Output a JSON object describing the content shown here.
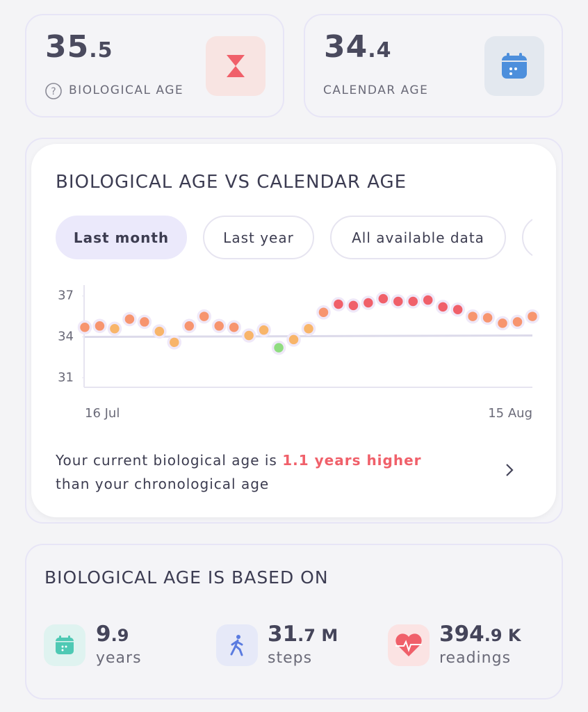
{
  "cards": [
    {
      "value_int": "35",
      "value_frac": ".5",
      "label": "BIOLOGICAL AGE"
    },
    {
      "value_int": "34",
      "value_frac": ".4",
      "label": "CALENDAR AGE"
    }
  ],
  "filters": [
    "Last month",
    "Last year",
    "All available data"
  ],
  "chart_data": {
    "type": "scatter",
    "title": "BIOLOGICAL AGE VS CALENDAR AGE",
    "categories": [
      "16 Jul",
      null,
      null,
      null,
      null,
      null,
      null,
      null,
      null,
      null,
      null,
      null,
      null,
      null,
      null,
      null,
      null,
      null,
      null,
      null,
      null,
      null,
      null,
      null,
      null,
      null,
      null,
      null,
      null,
      null,
      "15 Aug"
    ],
    "values": [
      34.7,
      34.8,
      34.6,
      35.3,
      35.1,
      34.4,
      33.6,
      34.8,
      35.5,
      34.8,
      34.7,
      34.1,
      34.5,
      33.2,
      33.8,
      34.6,
      35.8,
      36.4,
      36.3,
      36.5,
      36.8,
      36.6,
      36.6,
      36.7,
      36.2,
      36.0,
      35.5,
      35.4,
      35.0,
      35.1,
      35.5
    ],
    "colors": [
      "#f7956f",
      "#f7956f",
      "#f8b56a",
      "#f7956f",
      "#f7956f",
      "#f8b56a",
      "#f8b56a",
      "#f7956f",
      "#f7956f",
      "#f7956f",
      "#f7956f",
      "#f8b56a",
      "#f8b56a",
      "#8fdc80",
      "#f8b56a",
      "#f8b56a",
      "#f7956f",
      "#f0606a",
      "#f0606a",
      "#f0606a",
      "#f0606a",
      "#f0606a",
      "#f0606a",
      "#f0606a",
      "#f0606a",
      "#f0606a",
      "#f7956f",
      "#f7956f",
      "#f7956f",
      "#f7956f",
      "#f7956f"
    ],
    "baseline": [
      34.0,
      34.1
    ],
    "baseline_color": "#dcdaea",
    "ylim": [
      30.3,
      37.8
    ],
    "yticks": [
      31,
      34,
      37
    ]
  },
  "summary": {
    "text_before": "Your current biological age is",
    "highlight": "1.1 years higher",
    "text_after": "than your chronological age"
  },
  "based_on": {
    "title": "BIOLOGICAL AGE IS BASED ON",
    "items": [
      {
        "value_int": "9",
        "value_frac": ".9",
        "unit": "years"
      },
      {
        "value_int": "31",
        "value_frac": ".7 M",
        "unit": "steps"
      },
      {
        "value_int": "394",
        "value_frac": ".9 K",
        "unit": "readings"
      }
    ]
  }
}
